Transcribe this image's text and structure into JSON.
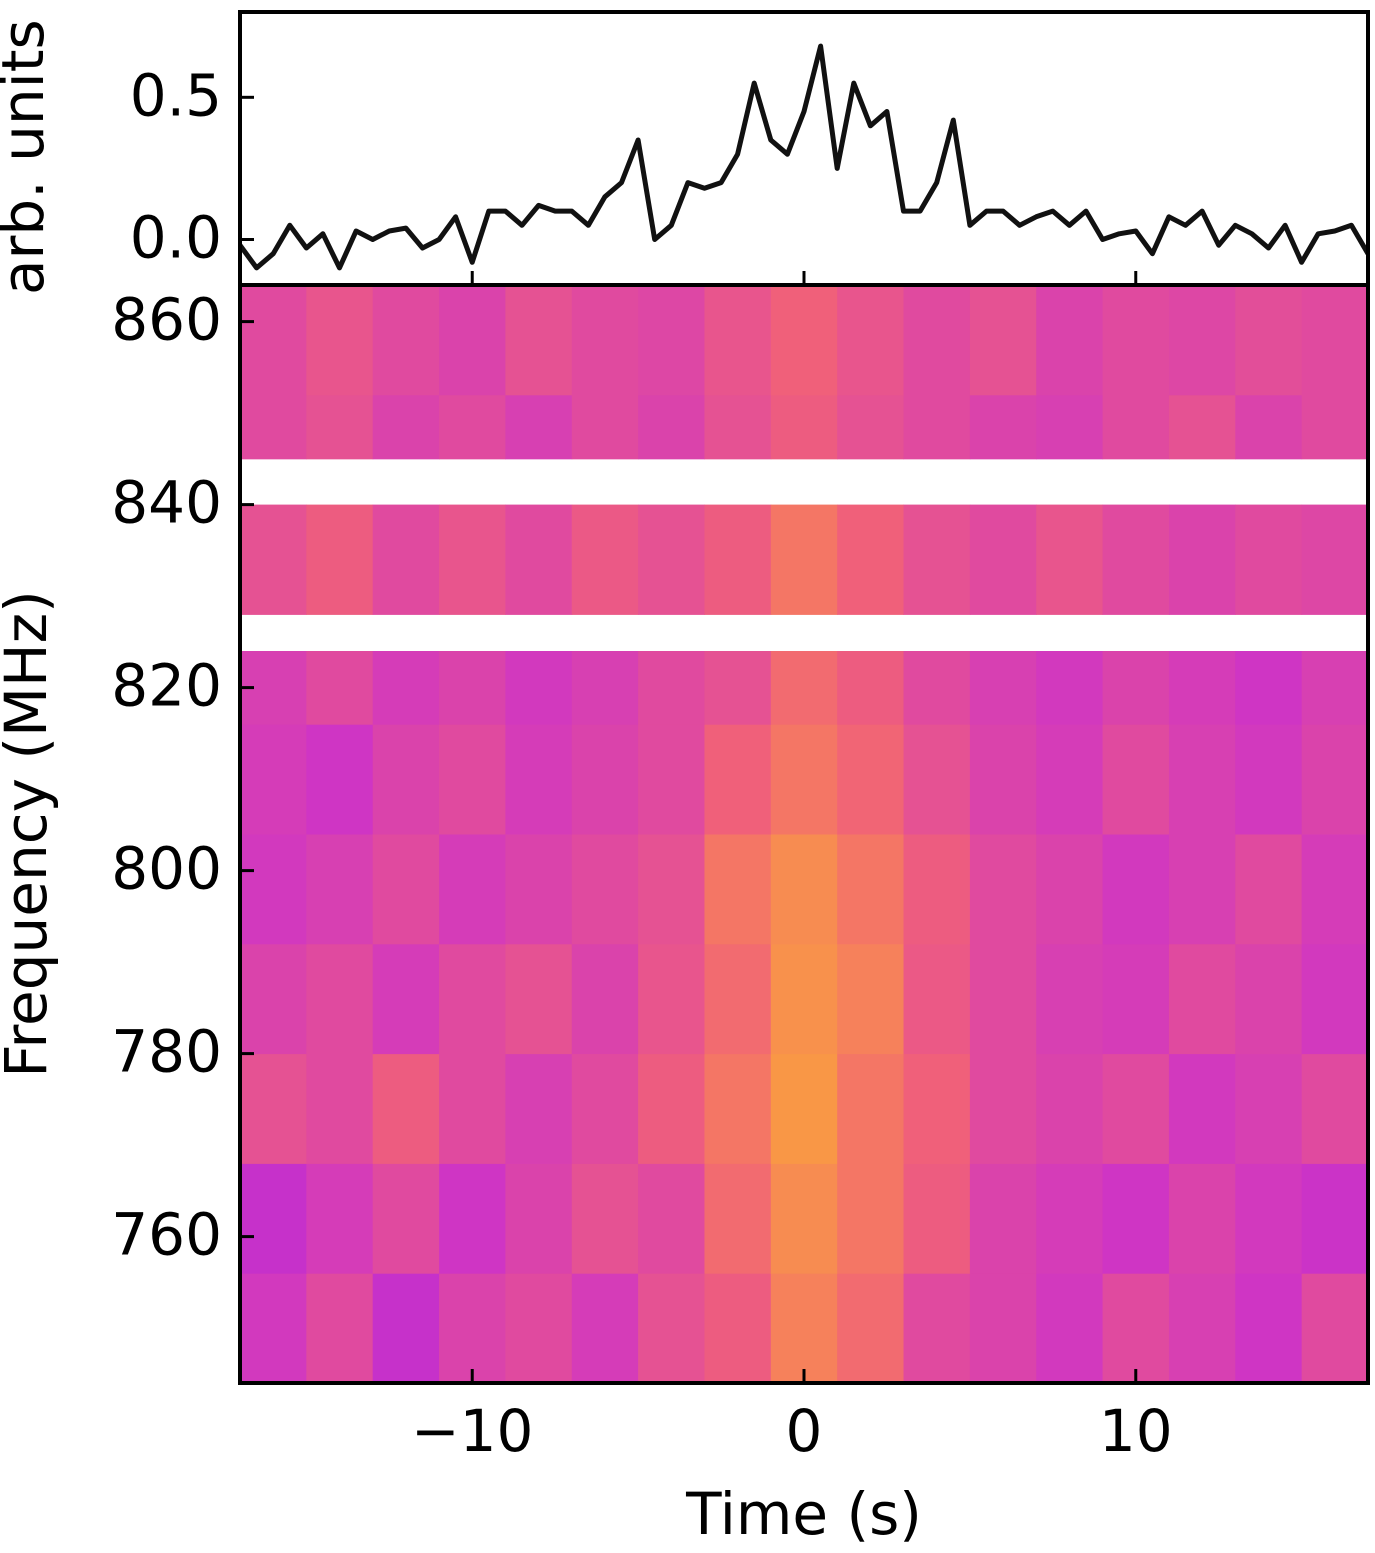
{
  "chart_data": [
    {
      "type": "line",
      "ylabel": "arb. units",
      "color": "#111111",
      "x": [
        -17,
        -16.5,
        -16,
        -15.5,
        -15,
        -14.5,
        -14,
        -13.5,
        -13,
        -12.5,
        -12,
        -11.5,
        -11,
        -10.5,
        -10,
        -9.5,
        -9,
        -8.5,
        -8,
        -7.5,
        -7,
        -6.5,
        -6,
        -5.5,
        -5,
        -4.5,
        -4,
        -3.5,
        -3,
        -2.5,
        -2,
        -1.5,
        -1,
        -0.5,
        0,
        0.5,
        1,
        1.5,
        2,
        2.5,
        3,
        3.5,
        4,
        4.5,
        5,
        5.5,
        6,
        6.5,
        7,
        7.5,
        8,
        8.5,
        9,
        9.5,
        10,
        10.5,
        11,
        11.5,
        12,
        12.5,
        13,
        13.5,
        14,
        14.5,
        15,
        15.5,
        16,
        16.5,
        17
      ],
      "values": [
        -0.02,
        -0.1,
        -0.05,
        0.05,
        -0.03,
        0.02,
        -0.1,
        0.03,
        0.0,
        0.03,
        0.04,
        -0.03,
        0.0,
        0.08,
        -0.08,
        0.1,
        0.1,
        0.05,
        0.12,
        0.1,
        0.1,
        0.05,
        0.15,
        0.2,
        0.35,
        0.0,
        0.05,
        0.2,
        0.18,
        0.2,
        0.3,
        0.55,
        0.35,
        0.3,
        0.45,
        0.68,
        0.25,
        0.55,
        0.4,
        0.45,
        0.1,
        0.1,
        0.2,
        0.42,
        0.05,
        0.1,
        0.1,
        0.05,
        0.08,
        0.1,
        0.05,
        0.1,
        0.0,
        0.02,
        0.03,
        -0.05,
        0.08,
        0.05,
        0.1,
        -0.02,
        0.05,
        0.02,
        -0.03,
        0.05,
        -0.08,
        0.02,
        0.03,
        0.05,
        -0.05
      ],
      "xlim": [
        -17,
        17
      ],
      "xticks": [
        {
          "value": -10,
          "label": "−10"
        },
        0,
        10
      ],
      "ylim": [
        -0.16,
        0.8
      ],
      "yticks": [
        {
          "value": 0,
          "label": "0.0"
        },
        0.5
      ]
    },
    {
      "type": "heatmap",
      "xlabel": "Time (s)",
      "ylabel": "Frequency (MHz)",
      "x_edges": [
        -17,
        -15,
        -13,
        -11,
        -9,
        -7,
        -5,
        -3,
        -1,
        1,
        3,
        5,
        7,
        9,
        11,
        13,
        15,
        17
      ],
      "y_edges": [
        744,
        756,
        768,
        780,
        792,
        804,
        816,
        824,
        828,
        840,
        845,
        852,
        864
      ],
      "values": [
        [
          0.45,
          0.5,
          0.42,
          0.48,
          0.5,
          0.46,
          0.52,
          0.55,
          0.62,
          0.58,
          0.5,
          0.48,
          0.45,
          0.5,
          0.47,
          0.44,
          0.5
        ],
        [
          0.42,
          0.46,
          0.5,
          0.44,
          0.48,
          0.52,
          0.5,
          0.58,
          0.64,
          0.6,
          0.55,
          0.48,
          0.46,
          0.44,
          0.48,
          0.45,
          0.43
        ],
        [
          0.52,
          0.5,
          0.55,
          0.5,
          0.47,
          0.5,
          0.55,
          0.6,
          0.66,
          0.6,
          0.56,
          0.5,
          0.48,
          0.5,
          0.45,
          0.47,
          0.5
        ],
        [
          0.48,
          0.5,
          0.46,
          0.5,
          0.52,
          0.48,
          0.53,
          0.58,
          0.65,
          0.62,
          0.54,
          0.5,
          0.47,
          0.46,
          0.5,
          0.48,
          0.45
        ],
        [
          0.45,
          0.47,
          0.5,
          0.46,
          0.48,
          0.5,
          0.52,
          0.6,
          0.64,
          0.6,
          0.55,
          0.5,
          0.48,
          0.45,
          0.47,
          0.5,
          0.46
        ],
        [
          0.46,
          0.44,
          0.48,
          0.5,
          0.46,
          0.48,
          0.5,
          0.56,
          0.6,
          0.57,
          0.52,
          0.48,
          0.46,
          0.5,
          0.47,
          0.45,
          0.48
        ],
        [
          0.47,
          0.5,
          0.46,
          0.48,
          0.45,
          0.47,
          0.5,
          0.52,
          0.58,
          0.55,
          0.5,
          0.47,
          0.45,
          0.48,
          0.46,
          0.44,
          0.47
        ],
        [
          null,
          null,
          null,
          null,
          null,
          null,
          null,
          null,
          null,
          null,
          null,
          null,
          null,
          null,
          null,
          null,
          null
        ],
        [
          0.52,
          0.55,
          0.5,
          0.53,
          0.5,
          0.54,
          0.52,
          0.55,
          0.6,
          0.56,
          0.52,
          0.5,
          0.53,
          0.5,
          0.48,
          0.5,
          0.49
        ],
        [
          null,
          null,
          null,
          null,
          null,
          null,
          null,
          null,
          null,
          null,
          null,
          null,
          null,
          null,
          null,
          null,
          null
        ],
        [
          0.5,
          0.52,
          0.48,
          0.5,
          0.47,
          0.5,
          0.48,
          0.52,
          0.55,
          0.52,
          0.5,
          0.48,
          0.47,
          0.5,
          0.52,
          0.48,
          0.5
        ],
        [
          0.5,
          0.53,
          0.5,
          0.48,
          0.52,
          0.5,
          0.49,
          0.53,
          0.56,
          0.53,
          0.5,
          0.52,
          0.48,
          0.5,
          0.49,
          0.51,
          0.5
        ]
      ],
      "zlim": [
        0.2,
        0.8
      ],
      "colormap": [
        "#3c0bff",
        "#9a1fe6",
        "#cf35c4",
        "#f0607a",
        "#fba23c",
        "#ffe04a"
      ],
      "xlim": [
        -17,
        17
      ],
      "xticks": [
        {
          "value": -10,
          "label": "−10"
        },
        0,
        10
      ],
      "ylim": [
        744,
        864
      ],
      "yticks": [
        760,
        780,
        800,
        820,
        840,
        860
      ]
    }
  ]
}
